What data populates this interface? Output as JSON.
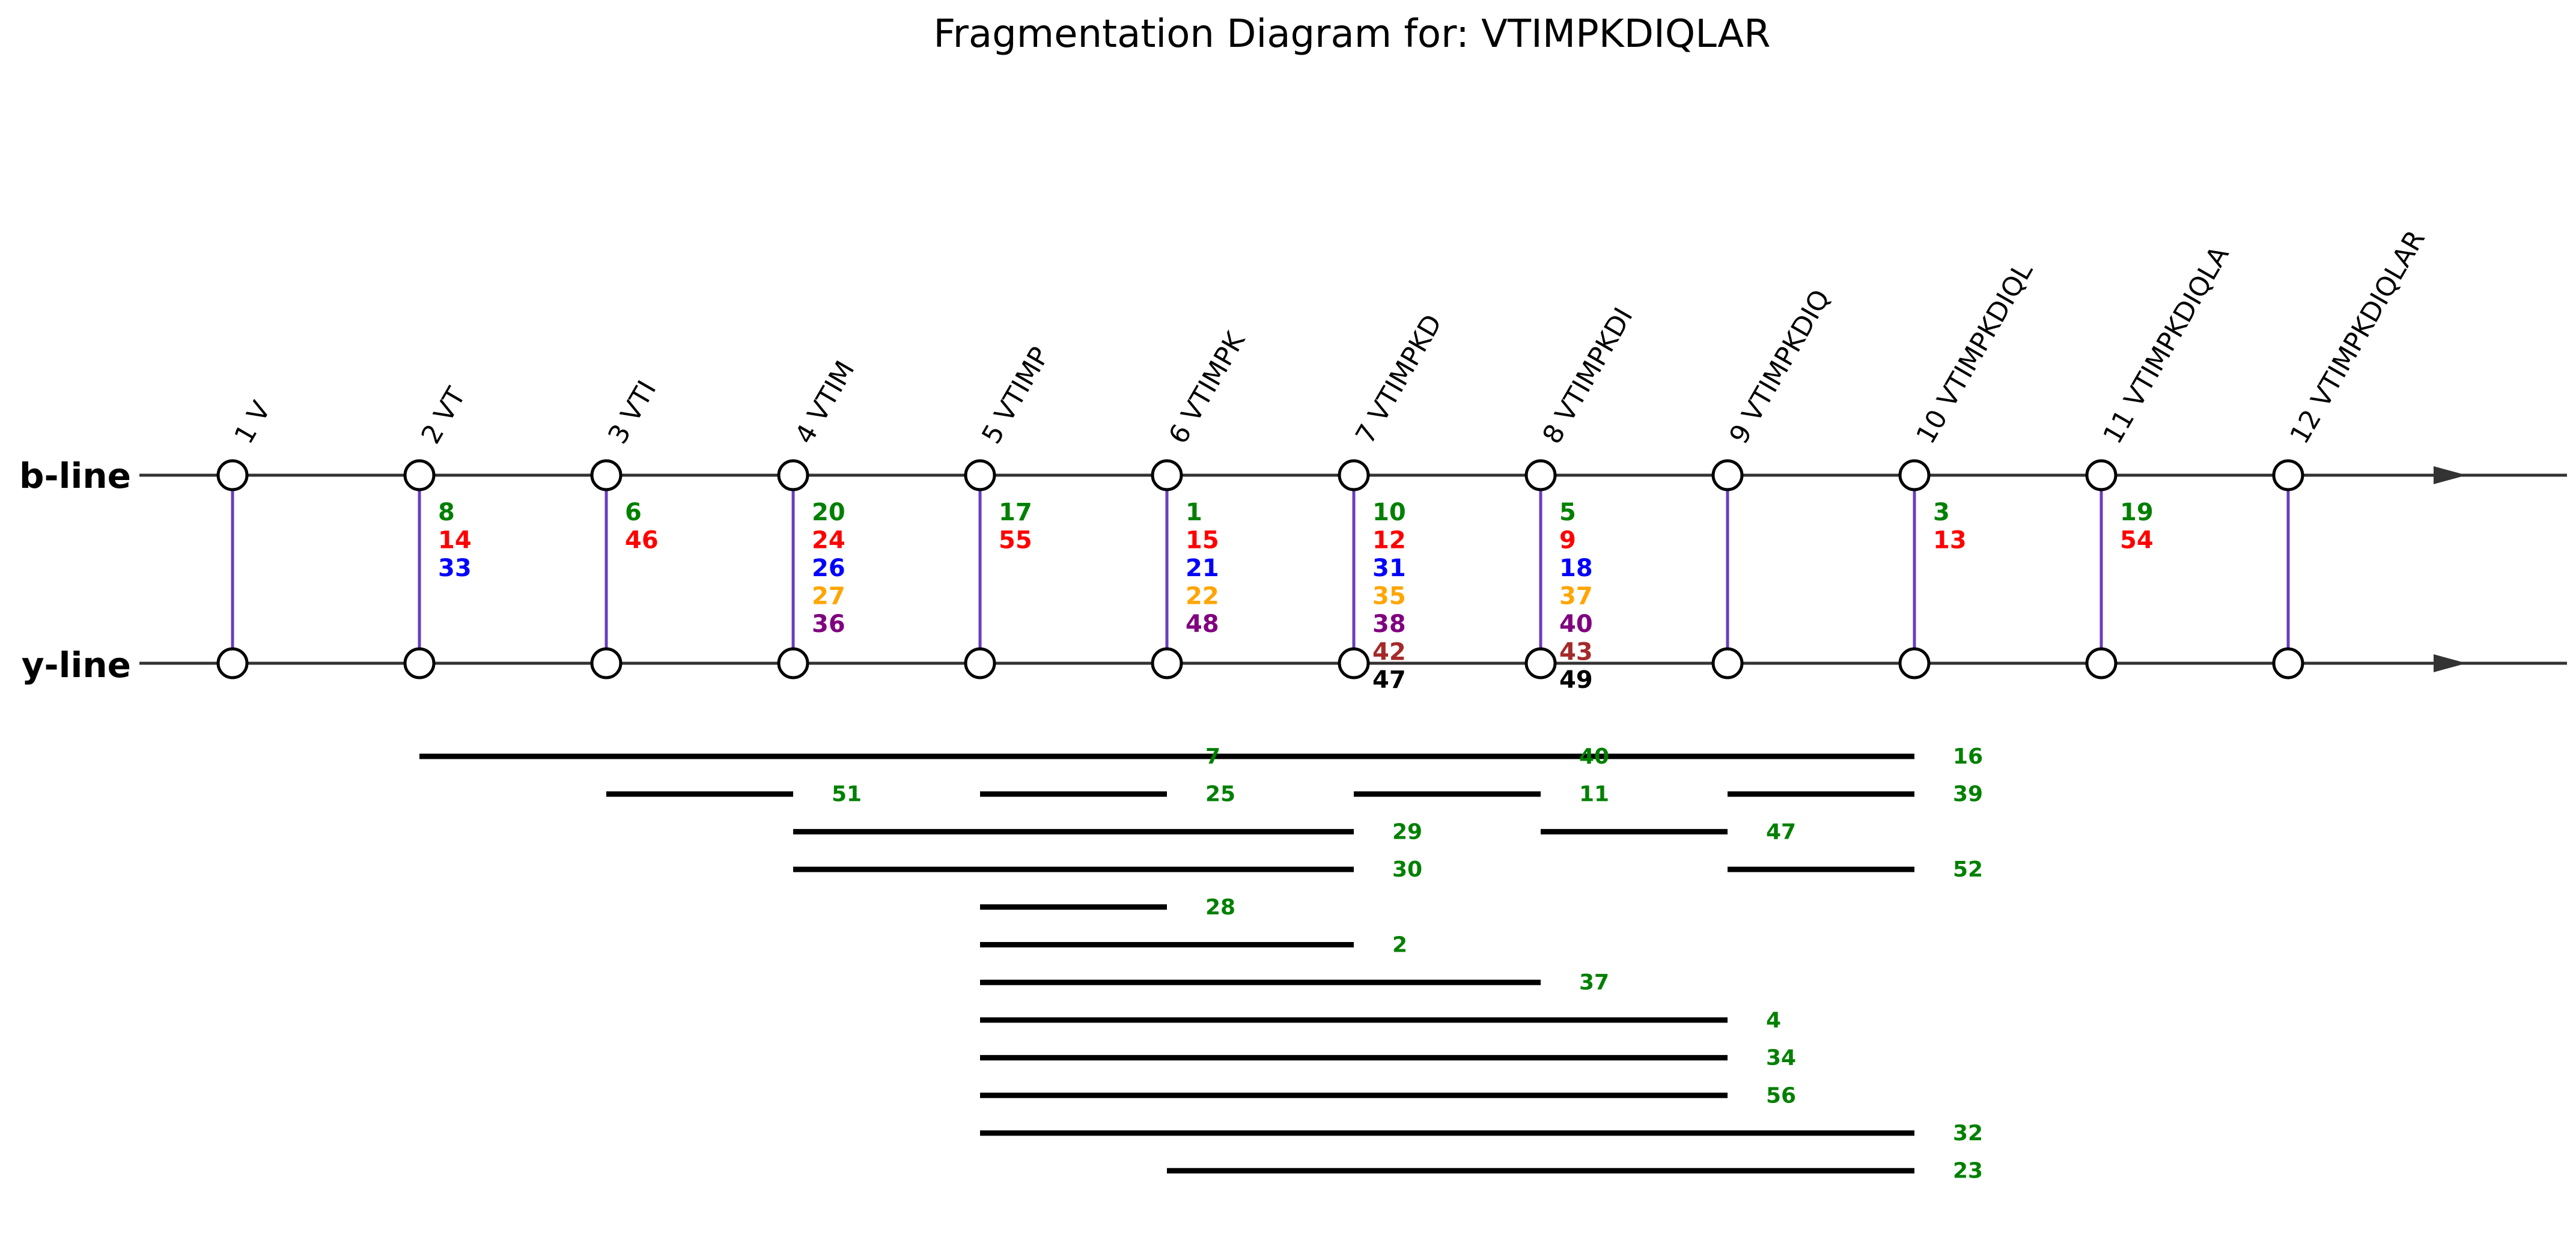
{
  "title": "Fragmentation Diagram for: VTIMPKDIQLAR",
  "lines": {
    "b": "b-line",
    "y": "y-line"
  },
  "positions": [
    "1 V",
    "2 VT",
    "3 VTI",
    "4 VTIM",
    "5 VTIMP",
    "6 VTIMPK",
    "7 VTIMPKD",
    "8 VTIMPKDI",
    "9 VTIMPKDIQ",
    "10 VTIMPKDIQL",
    "11 VTIMPKDIQLA",
    "12 VTIMPKDIQLAR"
  ],
  "colors": {
    "green": "#008000",
    "red": "#ff0000",
    "blue": "#0000ff",
    "orange": "#ffa500",
    "purple": "#800080",
    "brown": "#a52a2a",
    "black": "#000000",
    "connector": "#6a3dbd",
    "axis": "#333333"
  },
  "ion_labels": [
    {
      "pos": 2,
      "items": [
        {
          "text": "8",
          "color": "green"
        },
        {
          "text": "14",
          "color": "red"
        },
        {
          "text": "33",
          "color": "blue"
        }
      ]
    },
    {
      "pos": 3,
      "items": [
        {
          "text": "6",
          "color": "green"
        },
        {
          "text": "46",
          "color": "red"
        }
      ]
    },
    {
      "pos": 4,
      "items": [
        {
          "text": "20",
          "color": "green"
        },
        {
          "text": "24",
          "color": "red"
        },
        {
          "text": "26",
          "color": "blue"
        },
        {
          "text": "27",
          "color": "orange"
        },
        {
          "text": "36",
          "color": "purple"
        }
      ]
    },
    {
      "pos": 5,
      "items": [
        {
          "text": "17",
          "color": "green"
        },
        {
          "text": "55",
          "color": "red"
        }
      ]
    },
    {
      "pos": 6,
      "items": [
        {
          "text": "1",
          "color": "green"
        },
        {
          "text": "15",
          "color": "red"
        },
        {
          "text": "21",
          "color": "blue"
        },
        {
          "text": "22",
          "color": "orange"
        },
        {
          "text": "48",
          "color": "purple"
        }
      ]
    },
    {
      "pos": 7,
      "items": [
        {
          "text": "10",
          "color": "green"
        },
        {
          "text": "12",
          "color": "red"
        },
        {
          "text": "31",
          "color": "blue"
        },
        {
          "text": "35",
          "color": "orange"
        },
        {
          "text": "38",
          "color": "purple"
        },
        {
          "text": "42",
          "color": "brown"
        },
        {
          "text": "47",
          "color": "black"
        }
      ]
    },
    {
      "pos": 8,
      "items": [
        {
          "text": "5",
          "color": "green"
        },
        {
          "text": "9",
          "color": "red"
        },
        {
          "text": "18",
          "color": "blue"
        },
        {
          "text": "37",
          "color": "orange"
        },
        {
          "text": "40",
          "color": "purple"
        },
        {
          "text": "43",
          "color": "brown"
        },
        {
          "text": "49",
          "color": "black"
        }
      ]
    },
    {
      "pos": 10,
      "items": [
        {
          "text": "3",
          "color": "green"
        },
        {
          "text": "13",
          "color": "red"
        }
      ]
    },
    {
      "pos": 11,
      "items": [
        {
          "text": "19",
          "color": "green"
        },
        {
          "text": "54",
          "color": "red"
        }
      ]
    }
  ],
  "fragments": [
    {
      "start": 2,
      "end": 10,
      "row": 0,
      "label": "7",
      "label_pos": 6
    },
    {
      "start": 2,
      "end": 10,
      "row": 0,
      "label": "40",
      "label_pos": 8
    },
    {
      "start": 2,
      "end": 10,
      "row": 0,
      "label": "16",
      "label_pos": 10
    },
    {
      "start": 3,
      "end": 4,
      "row": 1,
      "label": "51",
      "label_pos": 4
    },
    {
      "start": 5,
      "end": 6,
      "row": 1,
      "label": "25",
      "label_pos": 6
    },
    {
      "start": 7,
      "end": 8,
      "row": 1,
      "label": "11",
      "label_pos": 8
    },
    {
      "start": 9,
      "end": 10,
      "row": 1,
      "label": "39",
      "label_pos": 10
    },
    {
      "start": 4,
      "end": 7,
      "row": 2,
      "label": "29",
      "label_pos": 7
    },
    {
      "start": 8,
      "end": 9,
      "row": 2,
      "label": "47",
      "label_pos": 9
    },
    {
      "start": 4,
      "end": 7,
      "row": 3,
      "label": "30",
      "label_pos": 7
    },
    {
      "start": 9,
      "end": 10,
      "row": 3,
      "label": "52",
      "label_pos": 10
    },
    {
      "start": 5,
      "end": 6,
      "row": 4,
      "label": "28",
      "label_pos": 6
    },
    {
      "start": 5,
      "end": 7,
      "row": 5,
      "label": "2",
      "label_pos": 7
    },
    {
      "start": 5,
      "end": 8,
      "row": 6,
      "label": "37",
      "label_pos": 8
    },
    {
      "start": 5,
      "end": 9,
      "row": 7,
      "label": "4",
      "label_pos": 9
    },
    {
      "start": 5,
      "end": 9,
      "row": 8,
      "label": "34",
      "label_pos": 9
    },
    {
      "start": 5,
      "end": 9,
      "row": 9,
      "label": "56",
      "label_pos": 9
    },
    {
      "start": 5,
      "end": 10,
      "row": 10,
      "label": "32",
      "label_pos": 10
    },
    {
      "start": 6,
      "end": 10,
      "row": 11,
      "label": "23",
      "label_pos": 10
    }
  ]
}
